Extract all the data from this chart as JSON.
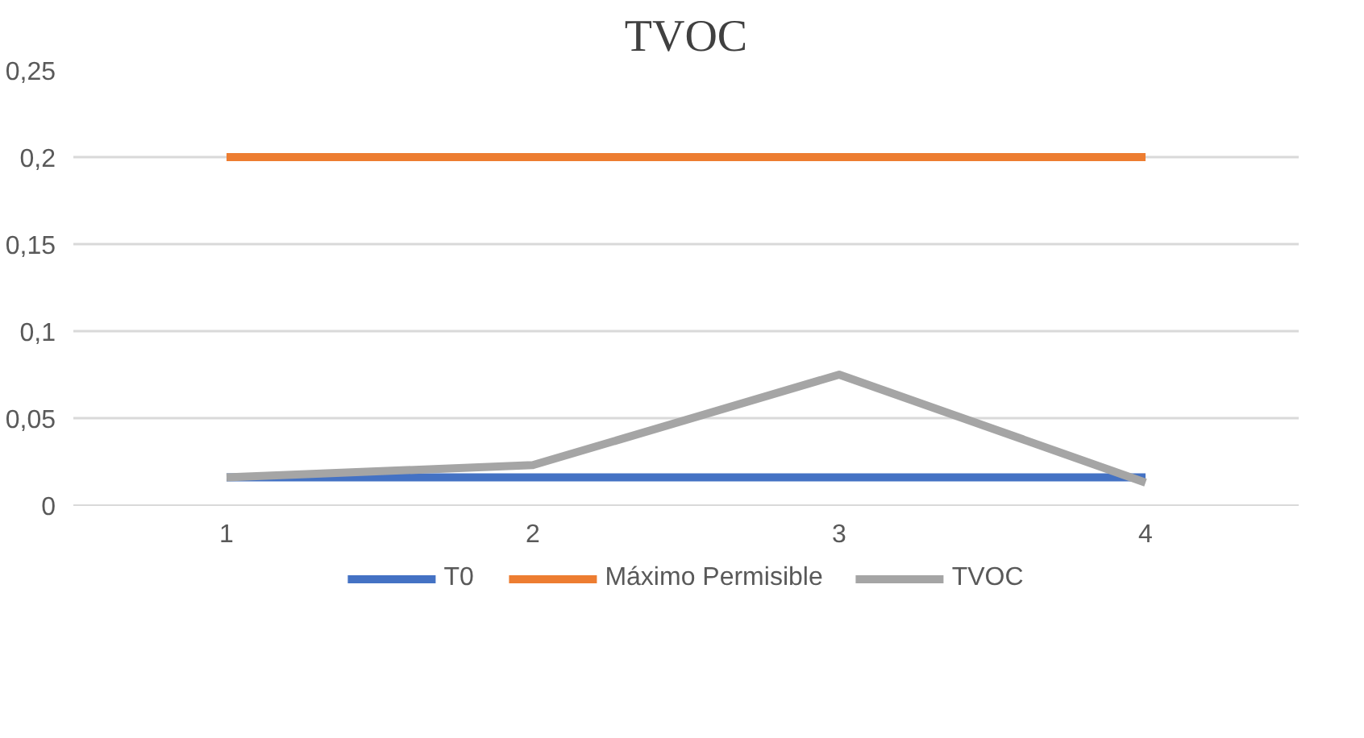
{
  "chart_data": {
    "type": "line",
    "title": "TVOC",
    "categories": [
      "1",
      "2",
      "3",
      "4"
    ],
    "series": [
      {
        "name": "T0",
        "color": "#4472c4",
        "values": [
          0.016,
          0.016,
          0.016,
          0.016
        ]
      },
      {
        "name": "Máximo Permisible",
        "color": "#ed7d31",
        "values": [
          0.2,
          0.2,
          0.2,
          0.2
        ]
      },
      {
        "name": "TVOC",
        "color": "#a5a5a5",
        "values": [
          0.016,
          0.023,
          0.075,
          0.013
        ]
      }
    ],
    "ylim": [
      0,
      0.25
    ],
    "yticks": [
      0,
      {
        "value": 0.05,
        "label": "0,05"
      },
      {
        "value": 0.1,
        "label": "0,1"
      },
      {
        "value": 0.15,
        "label": "0,15"
      },
      {
        "value": 0.2,
        "label": "0,2"
      },
      {
        "value": 0.25,
        "label": "0,25"
      }
    ],
    "grid": "y",
    "legend": "bottom",
    "marker": "none",
    "line_style": "solid"
  }
}
